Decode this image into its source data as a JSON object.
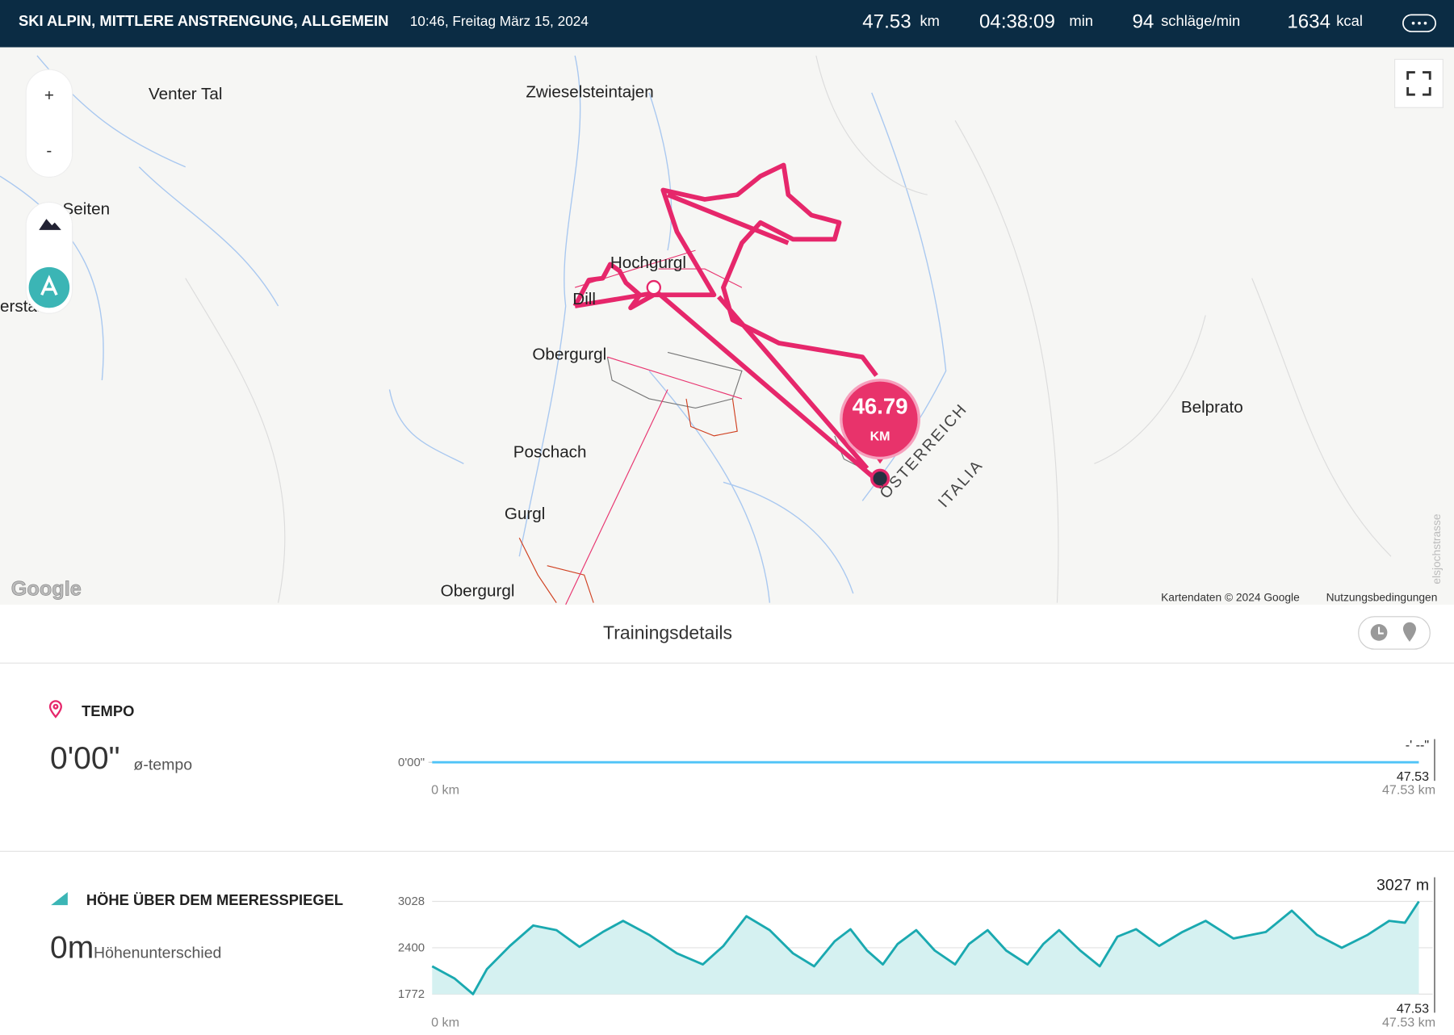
{
  "header": {
    "title": "SKI ALPIN, MITTLERE ANSTRENGUNG, ALLGEMEIN",
    "datetime": "10:46, Freitag März 15, 2024",
    "stats": [
      {
        "value": "47.53",
        "unit": "km"
      },
      {
        "value": "04:38:09",
        "unit": "min"
      },
      {
        "value": "94",
        "unit": "schläge/min"
      },
      {
        "value": "1634",
        "unit": "kcal"
      }
    ]
  },
  "map": {
    "zoom_in": "+",
    "zoom_out": "-",
    "places": [
      "Venter Tal",
      "Zwieselsteintajen",
      "Seiten",
      "erstal",
      "Hochgurgl",
      "Dill",
      "Obergurgl",
      "Poschach",
      "Gurgl",
      "Obergurgl",
      "Belprato",
      "elsjochstrasse"
    ],
    "badge": {
      "value": "46.79",
      "unit": "KM"
    },
    "borders": [
      "ÖSTERREICH",
      "ITALIA"
    ],
    "logo": "Google",
    "attribution": "Kartendaten © 2024 Google",
    "terms": "Nutzungsbedingungen"
  },
  "details_title": "Trainingsdetails",
  "tempo": {
    "label": "TEMPO",
    "value": "0'00\"",
    "unit": "ø-tempo",
    "chart": {
      "type": "line",
      "x": [
        0,
        47.53
      ],
      "values": [
        0,
        0
      ],
      "xlim": [
        0,
        47.53
      ],
      "yticks": [
        {
          "value": 0,
          "label": "0'00\""
        }
      ],
      "xticks": [
        {
          "value": 0,
          "label": "0 km"
        },
        {
          "value": 47.53,
          "label": "47.53 km"
        }
      ],
      "top_label": "-' --\"",
      "end_label": "47.53",
      "color": "#4fc3f7"
    }
  },
  "altitude": {
    "label": "HÖHE ÜBER DEM MEERESSPIEGEL",
    "value": "0m",
    "unit": "Höhenunterschied",
    "chart": {
      "type": "area",
      "color": "#1aa9b0",
      "fill": "#d5f1f1",
      "x": [
        0,
        1.07,
        1.97,
        2.64,
        3.75,
        4.87,
        5.99,
        7.1,
        8.22,
        9.2,
        10.45,
        11.79,
        13.04,
        14.03,
        15.14,
        16.26,
        17.38,
        18.4,
        19.39,
        20.15,
        20.95,
        21.71,
        22.42,
        23.32,
        24.21,
        25.19,
        25.86,
        26.76,
        27.65,
        28.68,
        29.44,
        30.2,
        31.22,
        32.16,
        33.01,
        33.91,
        35.02,
        36.14,
        37.26,
        38.6,
        40.16,
        41.41,
        42.62,
        43.82,
        45.07,
        46.1,
        46.86,
        47.53
      ],
      "values": [
        2149,
        1986,
        1772,
        2111,
        2425,
        2701,
        2639,
        2413,
        2613,
        2764,
        2576,
        2325,
        2174,
        2425,
        2827,
        2639,
        2325,
        2149,
        2488,
        2651,
        2362,
        2174,
        2450,
        2639,
        2362,
        2174,
        2450,
        2639,
        2362,
        2174,
        2450,
        2639,
        2362,
        2149,
        2551,
        2651,
        2425,
        2613,
        2764,
        2526,
        2613,
        2902,
        2576,
        2400,
        2576,
        2764,
        2739,
        3027
      ],
      "xlim": [
        0,
        47.53
      ],
      "ylim": [
        1772,
        3028
      ],
      "yticks": [
        1772,
        2400,
        3028
      ],
      "grid": true,
      "xticks": [
        {
          "value": 0,
          "label": "0 km"
        },
        {
          "value": 47.53,
          "label": "47.53 km"
        }
      ],
      "max_label": "3027 m",
      "end_label": "47.53"
    }
  }
}
